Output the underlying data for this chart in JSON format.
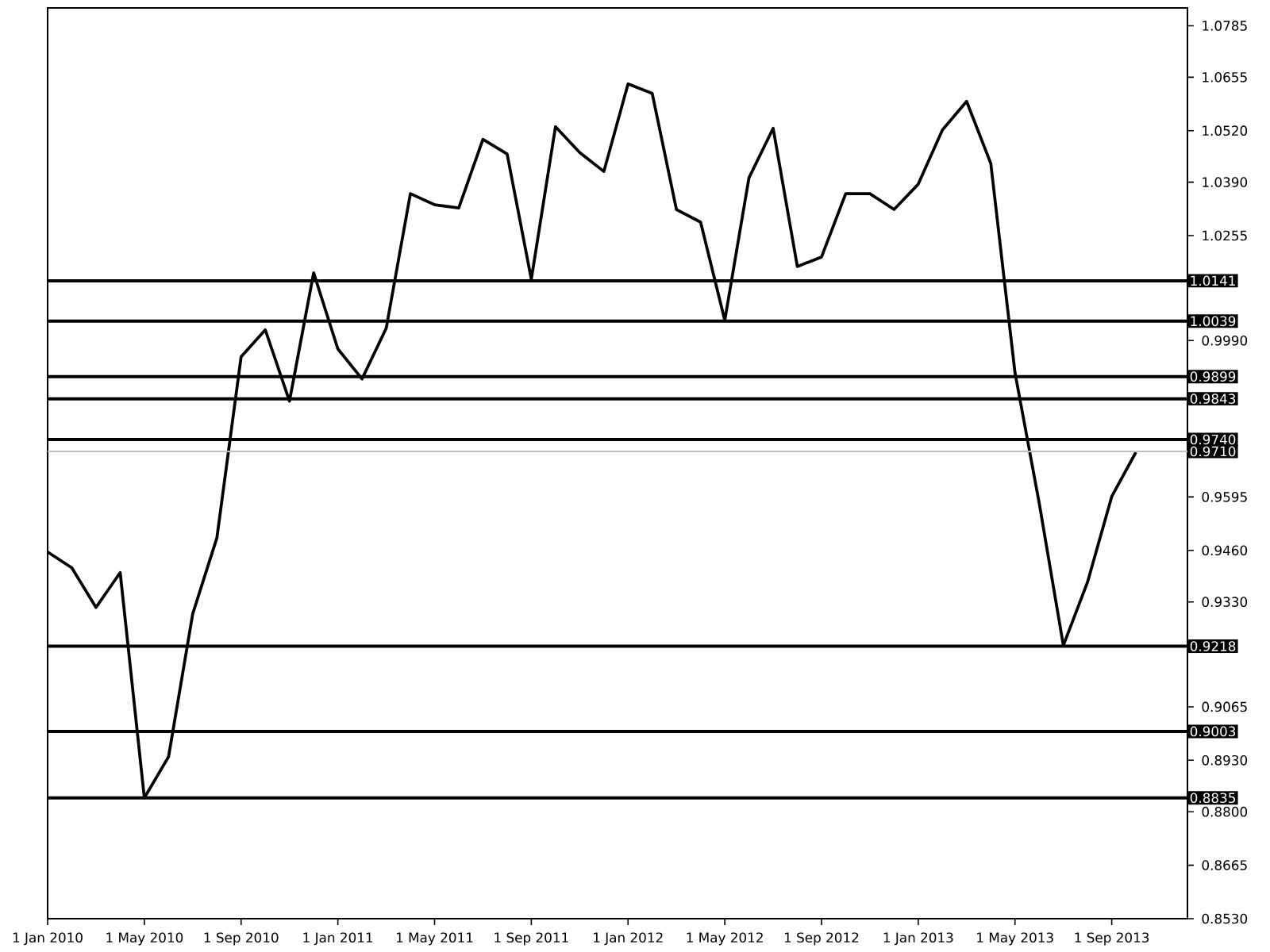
{
  "chart_data": {
    "type": "line",
    "x": [
      "2010-01",
      "2010-02",
      "2010-03",
      "2010-04",
      "2010-05",
      "2010-06",
      "2010-07",
      "2010-08",
      "2010-09",
      "2010-10",
      "2010-11",
      "2010-12",
      "2011-01",
      "2011-02",
      "2011-03",
      "2011-04",
      "2011-05",
      "2011-06",
      "2011-07",
      "2011-08",
      "2011-09",
      "2011-10",
      "2011-11",
      "2011-12",
      "2012-01",
      "2012-02",
      "2012-03",
      "2012-04",
      "2012-05",
      "2012-06",
      "2012-07",
      "2012-08",
      "2012-09",
      "2012-10",
      "2012-11",
      "2012-12",
      "2013-01",
      "2013-02",
      "2013-03",
      "2013-04",
      "2013-05",
      "2013-06",
      "2013-07",
      "2013-08",
      "2013-09",
      "2013-10"
    ],
    "series": [
      {
        "color": "#000000",
        "values": [
          0.9456,
          0.9416,
          0.9316,
          0.9404,
          0.8835,
          0.8939,
          0.93,
          0.9492,
          0.9949,
          1.0017,
          0.9837,
          1.0161,
          0.9969,
          0.9893,
          1.0021,
          1.0361,
          1.0333,
          1.0325,
          1.0498,
          1.0461,
          1.0145,
          1.053,
          1.0465,
          1.0417,
          1.0638,
          1.0614,
          1.0321,
          1.0289,
          1.0041,
          1.0401,
          1.0526,
          1.0177,
          1.0201,
          1.0361,
          1.0361,
          1.0321,
          1.0385,
          1.0522,
          1.0594,
          1.0437,
          0.9909,
          0.958,
          0.922,
          0.938,
          0.9596,
          0.9708
        ]
      }
    ],
    "xlim": [
      "2010-01-01",
      "2013-12-05"
    ],
    "xticks": [
      {
        "value": "2010-01-01",
        "label": "1 Jan 2010"
      },
      {
        "value": "2010-05-01",
        "label": "1 May 2010"
      },
      {
        "value": "2010-09-01",
        "label": "1 Sep 2010"
      },
      {
        "value": "2011-01-01",
        "label": "1 Jan 2011"
      },
      {
        "value": "2011-05-01",
        "label": "1 May 2011"
      },
      {
        "value": "2011-09-01",
        "label": "1 Sep 2011"
      },
      {
        "value": "2012-01-01",
        "label": "1 Jan 2012"
      },
      {
        "value": "2012-05-01",
        "label": "1 May 2012"
      },
      {
        "value": "2012-09-01",
        "label": "1 Sep 2012"
      },
      {
        "value": "2013-01-01",
        "label": "1 Jan 2013"
      },
      {
        "value": "2013-05-01",
        "label": "1 May 2013"
      },
      {
        "value": "2013-09-01",
        "label": "1 Sep 2013"
      }
    ],
    "ylim": [
      0.853,
      1.083
    ],
    "yticks": [
      {
        "value": 1.0785,
        "label": "1.0785"
      },
      {
        "value": 1.0655,
        "label": "1.0655"
      },
      {
        "value": 1.052,
        "label": "1.0520"
      },
      {
        "value": 1.039,
        "label": "1.0390"
      },
      {
        "value": 1.0255,
        "label": "1.0255"
      },
      {
        "value": 0.999,
        "label": "0.9990"
      },
      {
        "value": 0.9595,
        "label": "0.9595"
      },
      {
        "value": 0.946,
        "label": "0.9460"
      },
      {
        "value": 0.933,
        "label": "0.9330"
      },
      {
        "value": 0.9065,
        "label": "0.9065"
      },
      {
        "value": 0.893,
        "label": "0.8930"
      },
      {
        "value": 0.88,
        "label": "0.8800"
      },
      {
        "value": 0.8665,
        "label": "0.8665"
      },
      {
        "value": 0.853,
        "label": "0.8530"
      }
    ],
    "ref_lines": [
      {
        "axis": "y",
        "value": 1.0141,
        "label": "1.0141",
        "color": "#000000"
      },
      {
        "axis": "y",
        "value": 1.0039,
        "label": "1.0039",
        "color": "#000000"
      },
      {
        "axis": "y",
        "value": 0.9899,
        "label": "0.9899",
        "color": "#000000"
      },
      {
        "axis": "y",
        "value": 0.9843,
        "label": "0.9843",
        "color": "#000000"
      },
      {
        "axis": "y",
        "value": 0.974,
        "label": "0.9740",
        "color": "#000000"
      },
      {
        "axis": "y",
        "value": 0.971,
        "label": "0.9710",
        "color": "#c0c0c0"
      },
      {
        "axis": "y",
        "value": 0.9218,
        "label": "0.9218",
        "color": "#000000"
      },
      {
        "axis": "y",
        "value": 0.9003,
        "label": "0.9003",
        "color": "#000000"
      },
      {
        "axis": "y",
        "value": 0.8835,
        "label": "0.8835",
        "color": "#000000"
      }
    ],
    "grid": false,
    "marker": "none",
    "line_style": "solid"
  }
}
